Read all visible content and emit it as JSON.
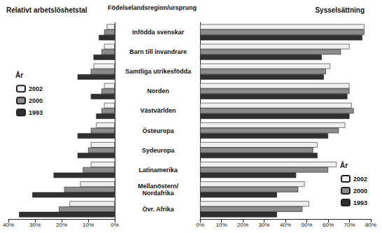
{
  "chart_data": [
    {
      "type": "bar",
      "title": "Relativt arbetslöshetstal",
      "ylabel": "Födelselandsregion/ursprung",
      "orientation": "horizontal",
      "categories": [
        "Infödda svenskar",
        "Barn till invandrare",
        "Samtliga utrikesfödda",
        "Norden",
        "Västvärlden",
        "Östeuropa",
        "Sydeuropa",
        "Latinamerika",
        "Mellanöstern/Nordafrika",
        "Övr. Afrika"
      ],
      "series": [
        {
          "name": "2002",
          "color": "#f0f0f0",
          "values": [
            3,
            4,
            8,
            4,
            4,
            7,
            9,
            9,
            13,
            17
          ]
        },
        {
          "name": "2000",
          "color": "#8c8c8c",
          "values": [
            4,
            5,
            9,
            5,
            5,
            9,
            10,
            12,
            19,
            21
          ]
        },
        {
          "name": "1993",
          "color": "#303030",
          "values": [
            6,
            8,
            14,
            9,
            7,
            14,
            14,
            23,
            31,
            36
          ]
        }
      ],
      "xlim": [
        40,
        0
      ],
      "xticks": [
        {
          "value": 40,
          "label": "40%"
        },
        {
          "value": 30,
          "label": "30%"
        },
        {
          "value": 20,
          "label": "20%"
        },
        {
          "value": 10,
          "label": "10%"
        },
        {
          "value": 0,
          "label": "0%"
        }
      ],
      "grid": false,
      "legend": "left",
      "legend_title": "År",
      "tick_labels": "x"
    },
    {
      "type": "bar",
      "title": "Sysselsättning",
      "orientation": "horizontal",
      "categories": [
        "Infödda svenskar",
        "Barn till invandrare",
        "Samtliga utrikesfödda",
        "Norden",
        "Västvärlden",
        "Östeuropa",
        "Sydeuropa",
        "Latinamerika",
        "Mellanöstern/Nordafrika",
        "Övr. Afrika"
      ],
      "series": [
        {
          "name": "2002",
          "color": "#f0f0f0",
          "values": [
            77,
            70,
            61,
            70,
            71,
            68,
            55,
            64,
            49,
            51
          ]
        },
        {
          "name": "2000",
          "color": "#8c8c8c",
          "values": [
            77,
            66,
            59,
            70,
            72,
            65,
            53,
            60,
            46,
            48
          ]
        },
        {
          "name": "1993",
          "color": "#303030",
          "values": [
            76,
            57,
            58,
            69,
            70,
            60,
            55,
            45,
            36,
            36
          ]
        }
      ],
      "xlim": [
        0,
        80
      ],
      "xticks": [
        {
          "value": 0,
          "label": "0%"
        },
        {
          "value": 10,
          "label": "10%"
        },
        {
          "value": 20,
          "label": "20%"
        },
        {
          "value": 30,
          "label": "30%"
        },
        {
          "value": 40,
          "label": "40%"
        },
        {
          "value": 50,
          "label": "50%"
        },
        {
          "value": 60,
          "label": "60%"
        },
        {
          "value": 70,
          "label": "70%"
        },
        {
          "value": 80,
          "label": "80%"
        }
      ],
      "grid": false,
      "legend": "lower right",
      "legend_title": "År"
    }
  ]
}
